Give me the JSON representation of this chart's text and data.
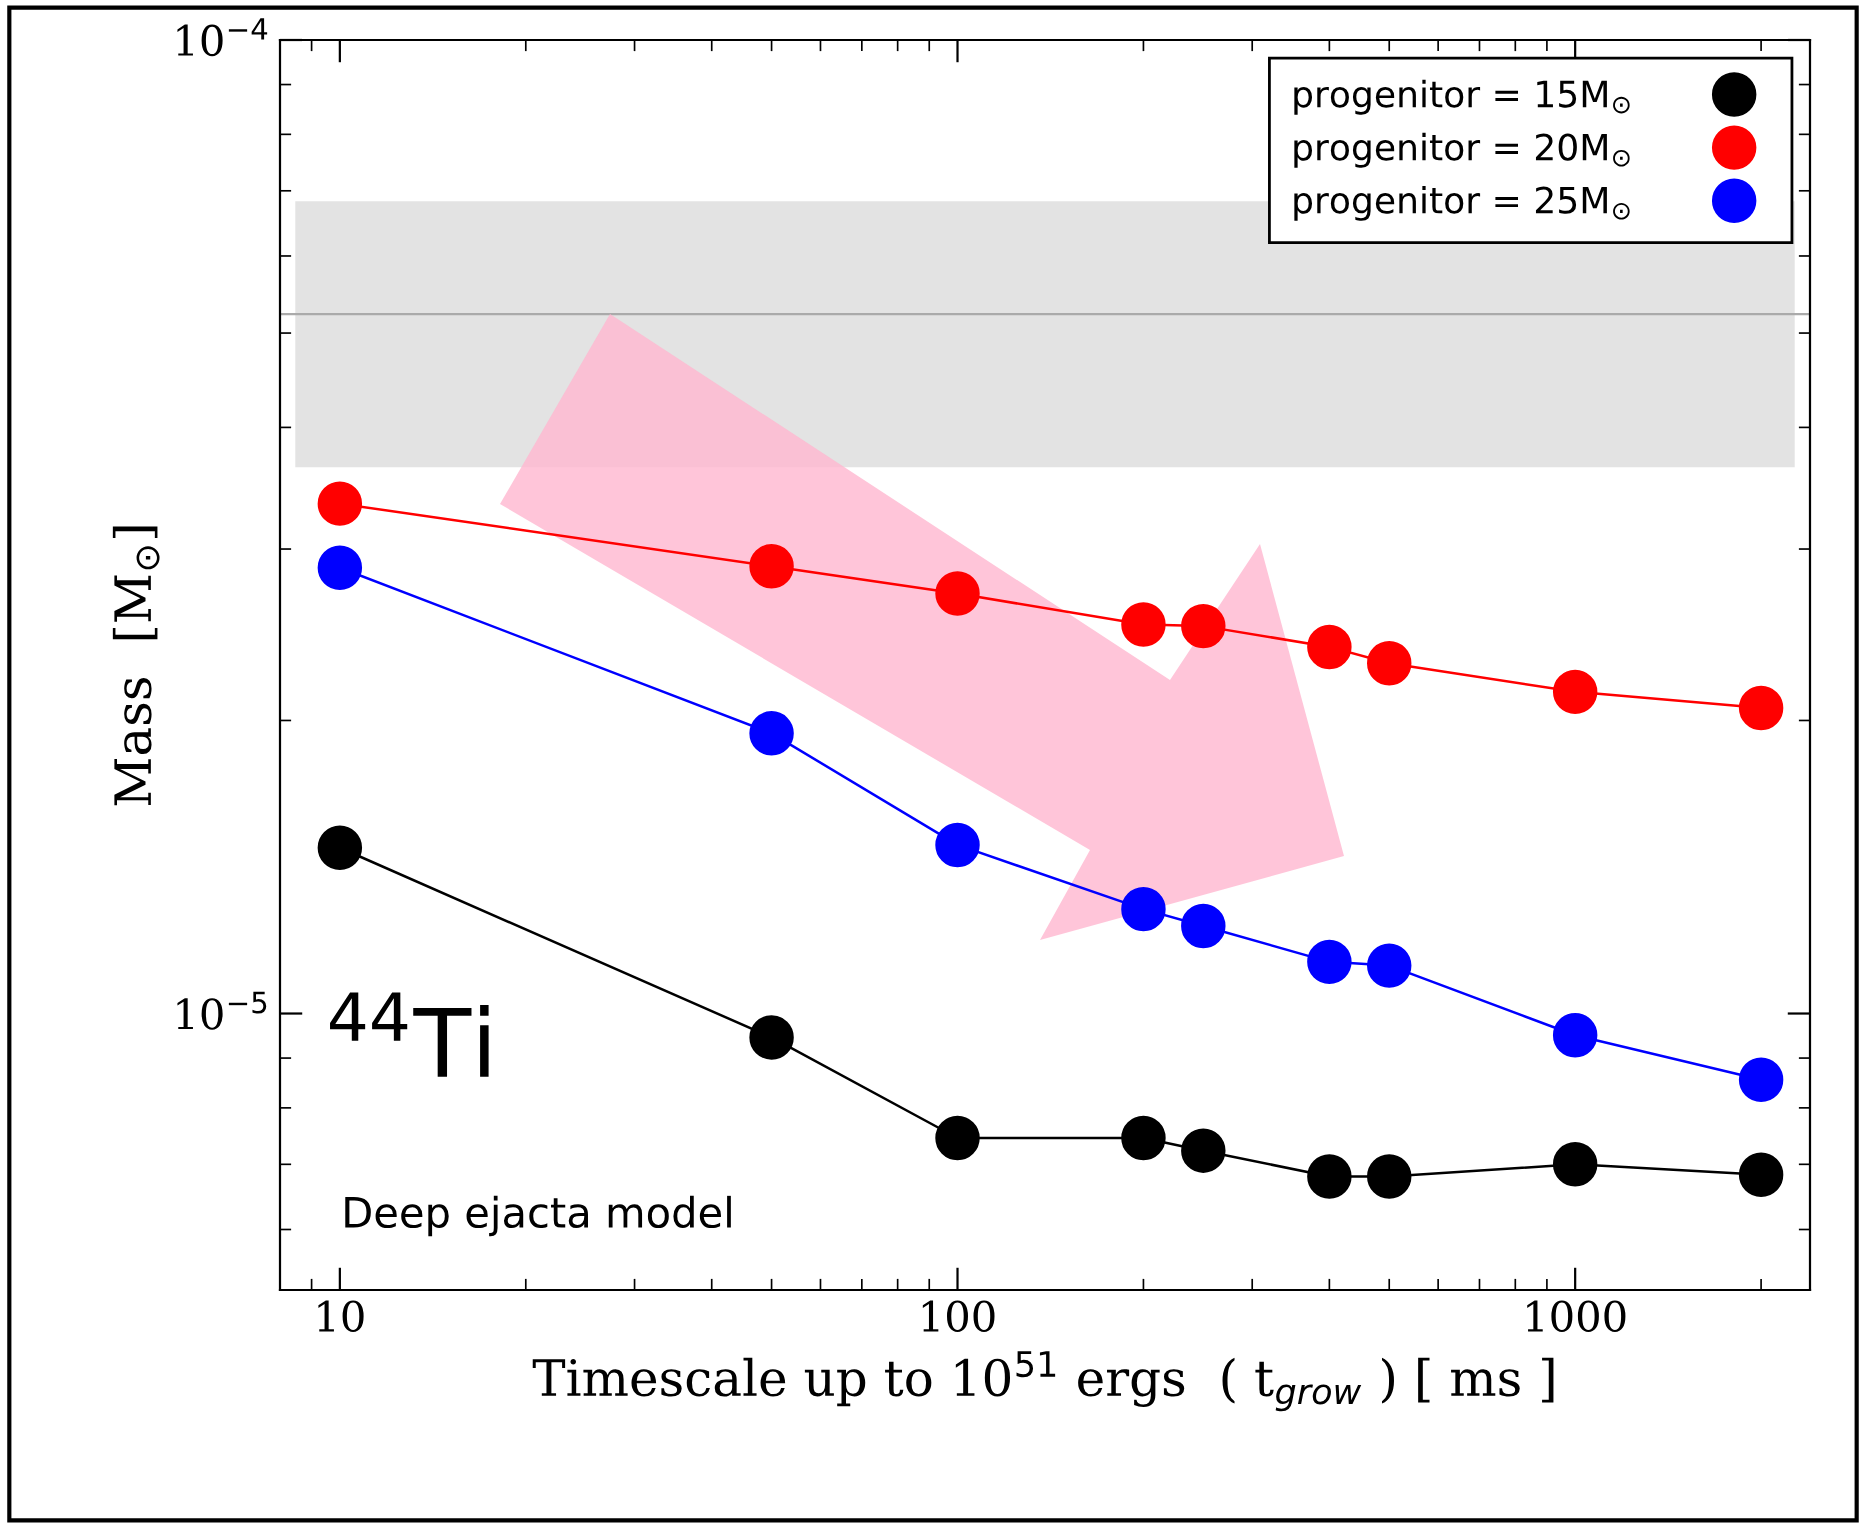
{
  "chart_data": {
    "type": "line",
    "xlabel": "Timescale up to 10$^{51}$ ergs  ( t$_{grow}$ ) [ ms ]",
    "ylabel": "Mass  [M$_{⊙}$]",
    "x": [
      10,
      50,
      100,
      200,
      250,
      400,
      500,
      1000,
      2000
    ],
    "series": [
      {
        "name": "progenitor = 15M$_{⊙}$",
        "color": "#000000",
        "values": [
          1.48e-05,
          9.45e-06,
          7.45e-06,
          7.45e-06,
          7.23e-06,
          6.8e-06,
          6.8e-06,
          7e-06,
          6.83e-06
        ]
      },
      {
        "name": "progenitor = 20M$_{⊙}$",
        "color": "#ff0000",
        "values": [
          3.34e-05,
          2.88e-05,
          2.7e-05,
          2.51e-05,
          2.5e-05,
          2.38e-05,
          2.29e-05,
          2.14e-05,
          2.06e-05
        ]
      },
      {
        "name": "progenitor = 25M$_{⊙}$",
        "color": "#0000ff",
        "values": [
          2.87e-05,
          1.94e-05,
          1.49e-05,
          1.28e-05,
          1.23e-05,
          1.13e-05,
          1.12e-05,
          9.5e-06,
          8.55e-06
        ]
      }
    ],
    "log": "xy",
    "xlim": [
      8,
      2400
    ],
    "ylim": [
      5.2e-06,
      0.0001
    ],
    "xticks": [
      10,
      100,
      1000
    ],
    "yticks": [
      {
        "value": 1e-05,
        "label": "10$^{−5}$"
      },
      {
        "value": 0.0001,
        "label": "10$^{−4}$"
      }
    ],
    "marker": "circle",
    "line_style": "solid",
    "legend": "top right",
    "grid": false,
    "bands": [
      {
        "axis": "y",
        "from": 3.64e-05,
        "to": 6.83e-05,
        "color": "#e3e3e3"
      }
    ],
    "ref_lines": [
      {
        "axis": "y",
        "value": 5.23e-05,
        "color": "#aaaaaa",
        "line_style": "solid"
      }
    ],
    "annotations": [
      "$^{44}$Ti",
      "Deep ejacta model"
    ]
  }
}
